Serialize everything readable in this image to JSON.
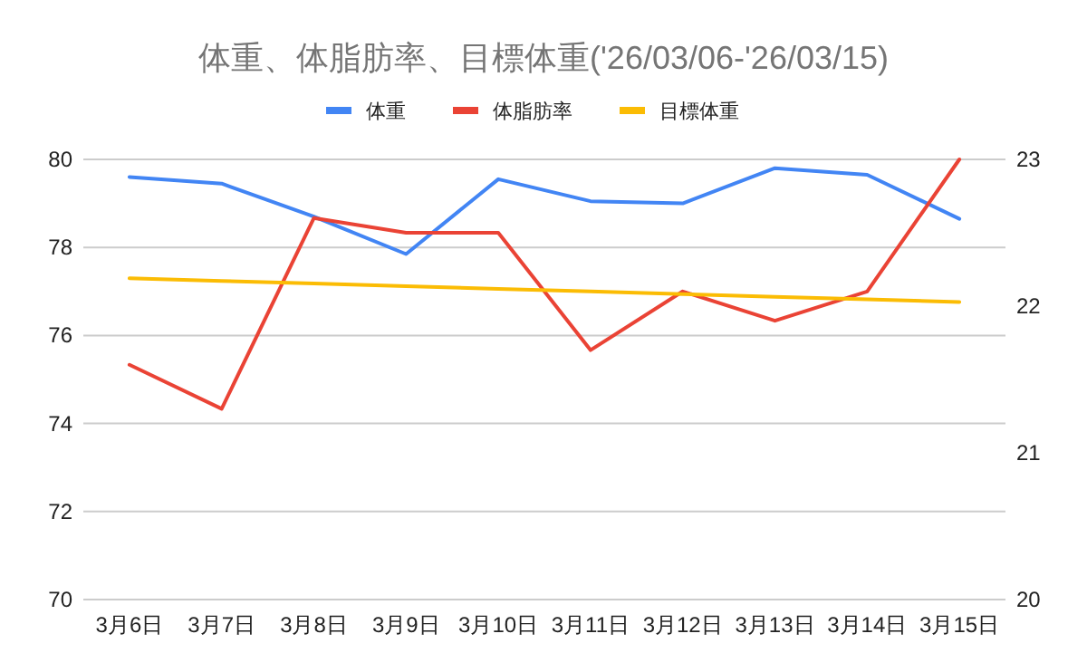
{
  "chart_data": {
    "type": "line",
    "title": "体重、体脂肪率、目標体重('26/03/06-'26/03/15)",
    "categories": [
      "3月6日",
      "3月7日",
      "3月8日",
      "3月9日",
      "3月10日",
      "3月11日",
      "3月12日",
      "3月13日",
      "3月14日",
      "3月15日"
    ],
    "series": [
      {
        "name": "体重",
        "color": "#4285f4",
        "values": [
          79.6,
          79.45,
          78.7,
          77.85,
          79.55,
          79.05,
          79.0,
          79.8,
          79.65,
          78.65
        ]
      },
      {
        "name": "体脂肪率",
        "color": "#ea4335",
        "axis": "y2",
        "values": [
          21.6,
          21.3,
          22.6,
          22.5,
          22.5,
          21.7,
          22.1,
          21.9,
          22.1,
          23.0
        ]
      },
      {
        "name": "目標体重",
        "color": "#fbbc04",
        "values": [
          77.3,
          77.24,
          77.18,
          77.12,
          77.06,
          77.0,
          76.94,
          76.88,
          76.82,
          76.76
        ]
      }
    ],
    "ylim": [
      70,
      80
    ],
    "yticks": [
      70,
      72,
      74,
      76,
      78,
      80
    ],
    "y2lim": [
      20,
      23
    ],
    "y2ticks": [
      20,
      21,
      22,
      23
    ],
    "grid": "y",
    "legend": "top",
    "marker": "none",
    "line_style": "solid"
  }
}
